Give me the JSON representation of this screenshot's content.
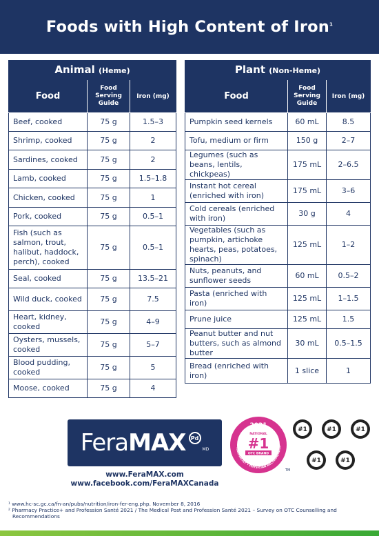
{
  "header": {
    "title": "Foods with High Content of Iron",
    "footnote_mark": "1"
  },
  "animal": {
    "title": "Animal",
    "subtitle": "(Heme)",
    "col_food": "Food",
    "col_serving": "Food Serving Guide",
    "col_iron": "Iron (mg)",
    "rows": [
      {
        "food": "Beef, cooked",
        "serving": "75 g",
        "iron": "1.5–3"
      },
      {
        "food": "Shrimp, cooked",
        "serving": "75 g",
        "iron": "2"
      },
      {
        "food": "Sardines, cooked",
        "serving": "75 g",
        "iron": "2"
      },
      {
        "food": "Lamb, cooked",
        "serving": "75 g",
        "iron": "1.5–1.8"
      },
      {
        "food": "Chicken, cooked",
        "serving": "75 g",
        "iron": "1"
      },
      {
        "food": "Pork, cooked",
        "serving": "75 g",
        "iron": "0.5–1"
      },
      {
        "food": "Fish (such as salmon, trout, halibut, haddock, perch), cooked",
        "serving": "75 g",
        "iron": "0.5–1"
      },
      {
        "food": "Seal, cooked",
        "serving": "75 g",
        "iron": "13.5–21"
      },
      {
        "food": "Wild duck, cooked",
        "serving": "75 g",
        "iron": "7.5"
      },
      {
        "food": "Heart, kidney, cooked",
        "serving": "75 g",
        "iron": "4–9"
      },
      {
        "food": "Oysters, mussels, cooked",
        "serving": "75 g",
        "iron": "5–7"
      },
      {
        "food": "Blood pudding, cooked",
        "serving": "75 g",
        "iron": "5"
      },
      {
        "food": "Moose, cooked",
        "serving": "75 g",
        "iron": "4"
      }
    ]
  },
  "plant": {
    "title": "Plant",
    "subtitle": "(Non-Heme)",
    "col_food": "Food",
    "col_serving": "Food Serving Guide",
    "col_iron": "Iron (mg)",
    "rows": [
      {
        "food": "Pumpkin seed kernels",
        "serving": "60 mL",
        "iron": "8.5"
      },
      {
        "food": "Tofu, medium or firm",
        "serving": "150 g",
        "iron": "2–7"
      },
      {
        "food": "Legumes (such as beans, lentils, chickpeas)",
        "serving": "175 mL",
        "iron": "2–6.5"
      },
      {
        "food": "Instant hot cereal (enriched with iron)",
        "serving": "175 mL",
        "iron": "3–6"
      },
      {
        "food": "Cold cereals (enriched with iron)",
        "serving": "30 g",
        "iron": "4"
      },
      {
        "food": "Vegetables (such as pumpkin, artichoke hearts, peas, potatoes, spinach)",
        "serving": "125 mL",
        "iron": "1–2"
      },
      {
        "food": "Nuts, peanuts, and sunflower seeds",
        "serving": "60 mL",
        "iron": "0.5–2"
      },
      {
        "food": "Pasta (enriched with iron)",
        "serving": "125 mL",
        "iron": "1–1.5"
      },
      {
        "food": "Prune juice",
        "serving": "125 mL",
        "iron": "1.5"
      },
      {
        "food": "Peanut butter and nut butters, such as almond butter",
        "serving": "30 mL",
        "iron": "0.5–1.5"
      },
      {
        "food": "Bread (enriched with iron)",
        "serving": "1 slice",
        "iron": "1"
      }
    ]
  },
  "brand": {
    "logo_plain": "Fera",
    "logo_bold": "MAX",
    "mark": "Pd",
    "suffix": "MD"
  },
  "seal": {
    "year": "2021",
    "national": "NATIONAL",
    "rank": "#1",
    "label": "OTC BRAND",
    "arc_text": "PHARMACIST • PHYSICIAN RECOMMENDED",
    "tm": "TM"
  },
  "awards": [
    "#1",
    "#1",
    "#1",
    "#1",
    "#1"
  ],
  "links": {
    "site": "www.FeraMAX.com",
    "facebook": "www.facebook.com/FeraMAXCanada"
  },
  "notes": [
    "¹ www.hc-sc.gc.ca/fn-an/pubs/nutrition/iron-fer-eng.php. November 8, 2016",
    "² Pharmacy Practice+ and Profession Santé 2021 / The Medical Post and Profession Santé 2021 – Survey on OTC Counselling and Recommendations"
  ],
  "colors": {
    "navy": "#1e3463",
    "magenta": "#d6338f",
    "green": "#5cb630"
  }
}
